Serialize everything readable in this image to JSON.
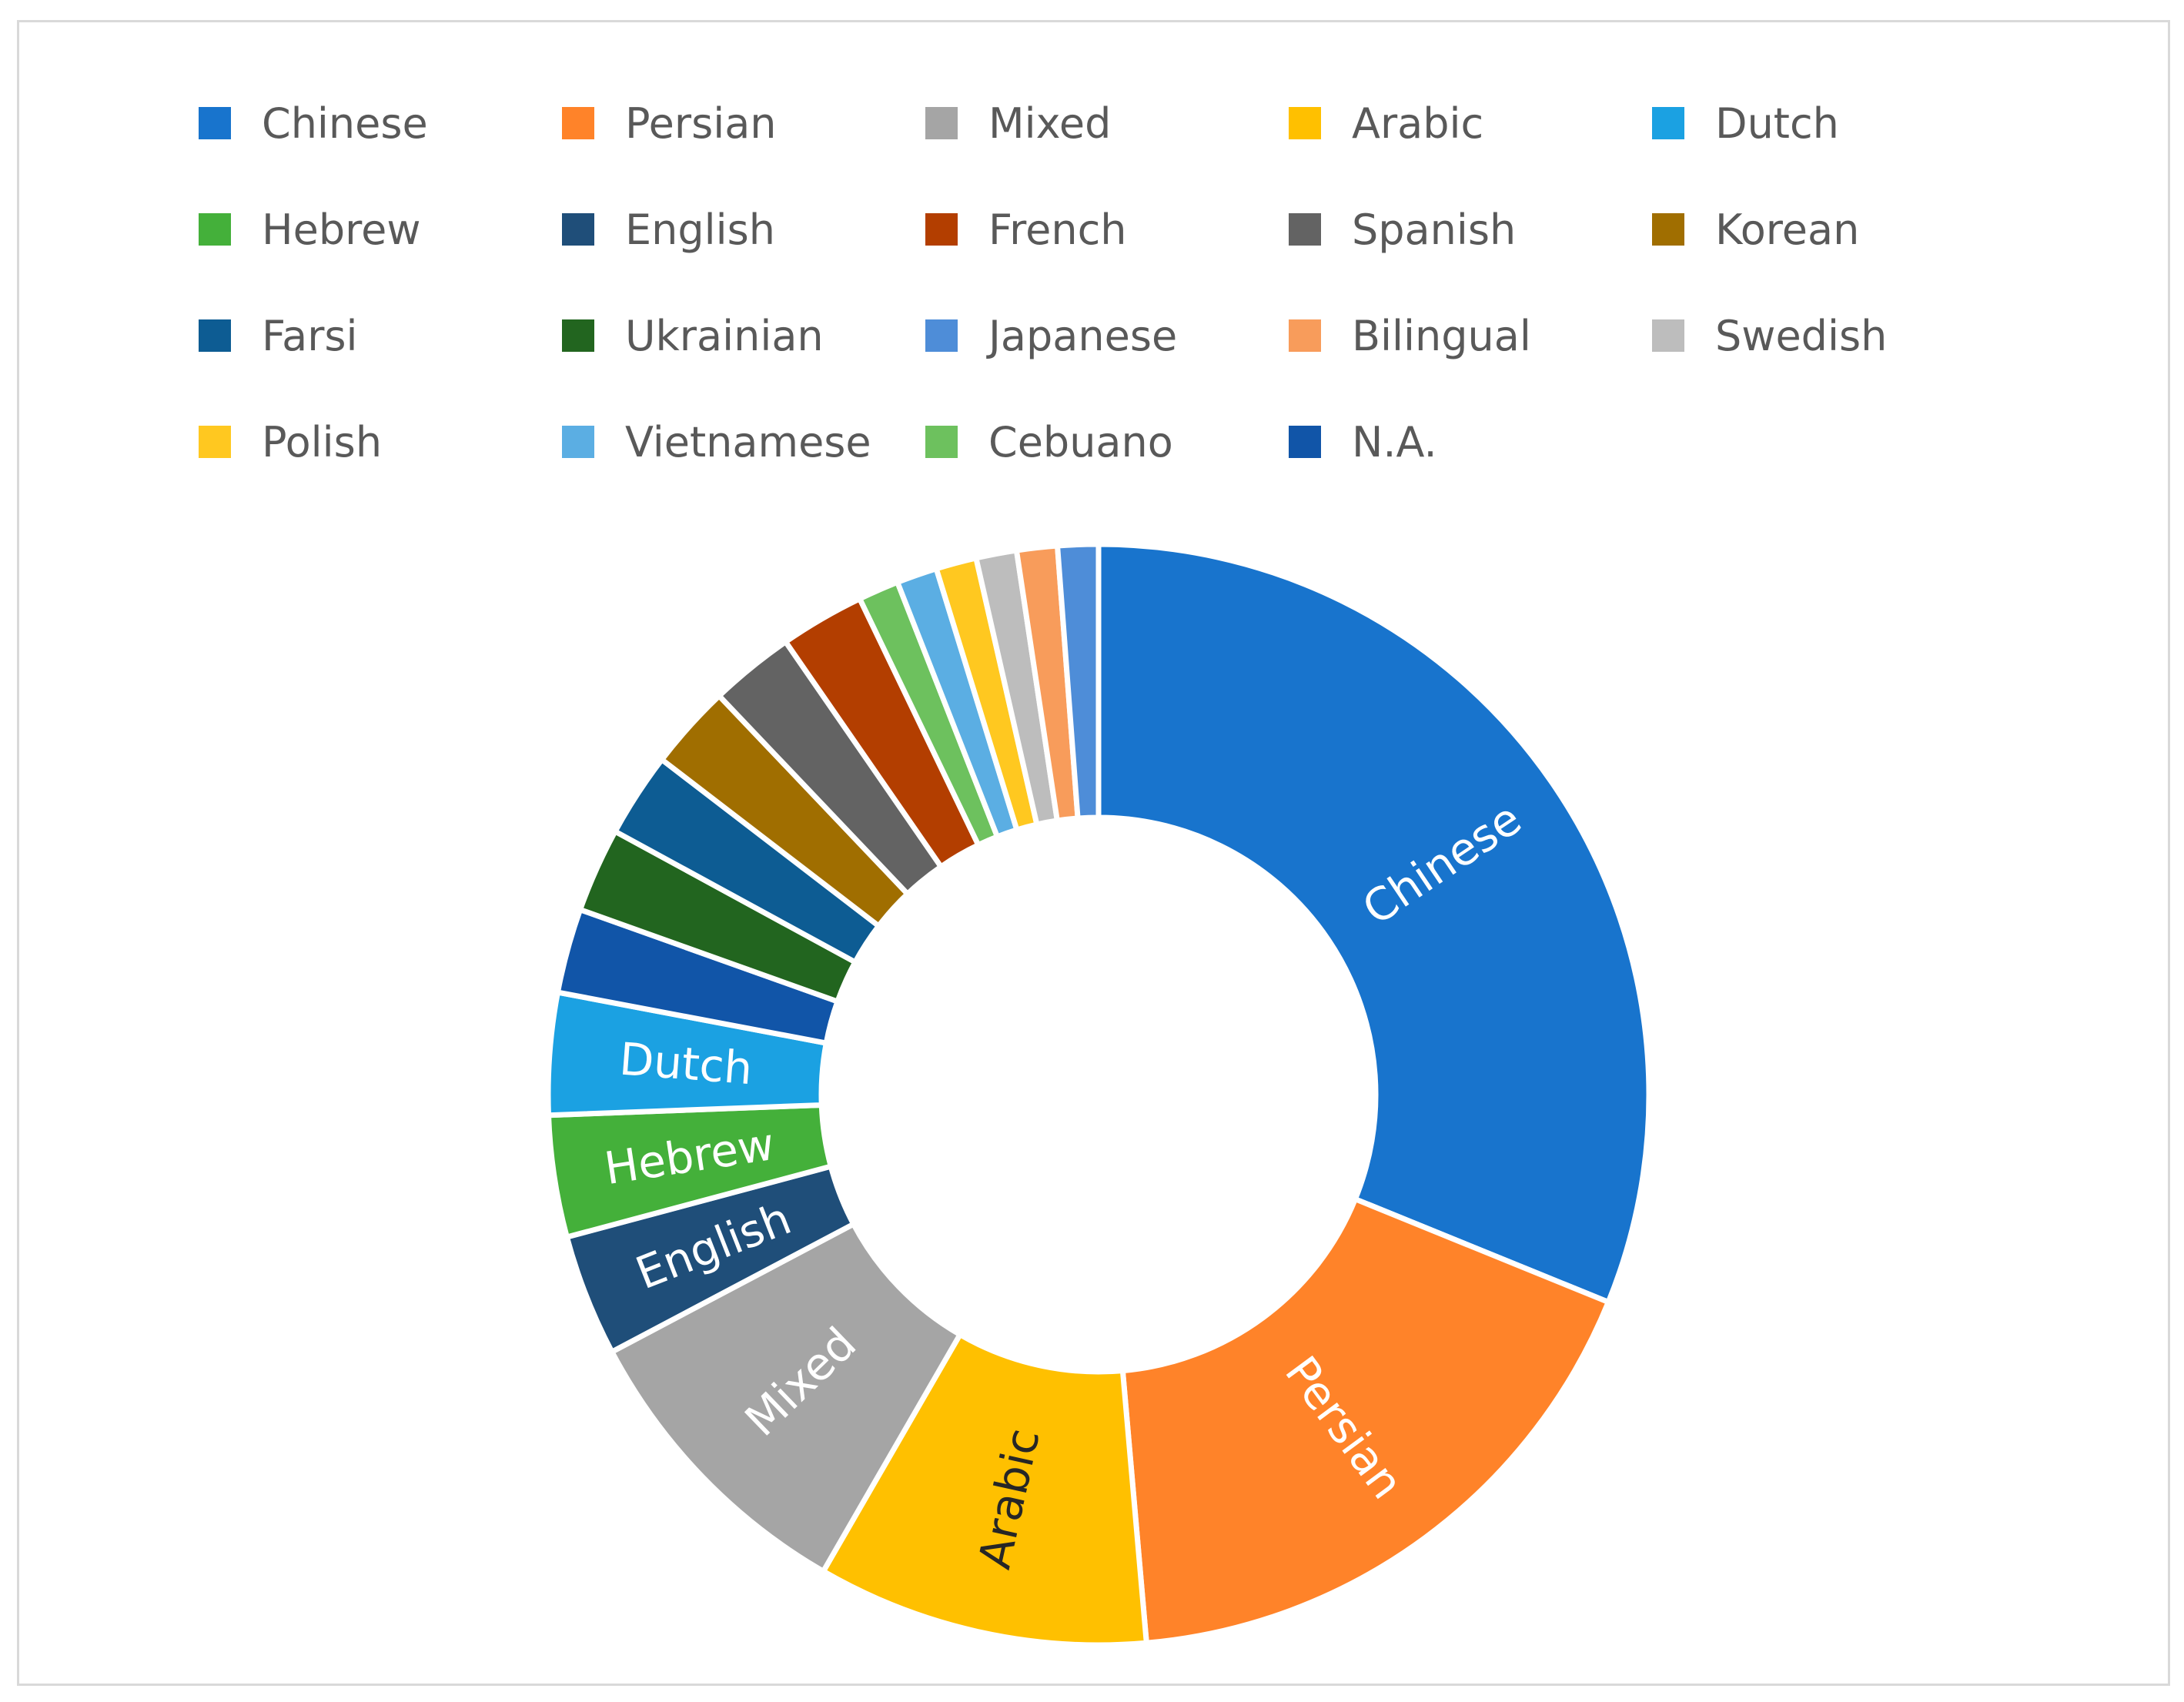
{
  "chart_data": {
    "type": "pie",
    "variant": "donut",
    "title": "",
    "legend_position": "top",
    "slices": [
      {
        "label": "Chinese",
        "value": 31.4,
        "color": "#1874CD",
        "data_label": "Chinese",
        "label_color": "#ffffff"
      },
      {
        "label": "Persian",
        "value": 17.6,
        "color": "#FF8329",
        "data_label": "Persian",
        "label_color": "#ffffff"
      },
      {
        "label": "Arabic",
        "value": 9.8,
        "color": "#FFC000",
        "data_label": "Arabic",
        "label_color": "#262626"
      },
      {
        "label": "Mixed",
        "value": 9.0,
        "color": "#A5A5A5",
        "data_label": "Mixed",
        "label_color": "#ffffff"
      },
      {
        "label": "English",
        "value": 3.6,
        "color": "#1F4E79",
        "data_label": "English",
        "label_color": "#ffffff"
      },
      {
        "label": "Hebrew",
        "value": 3.6,
        "color": "#44B03A",
        "data_label": "Hebrew",
        "label_color": "#ffffff"
      },
      {
        "label": "Dutch",
        "value": 3.6,
        "color": "#1BA1E2",
        "data_label": "Dutch",
        "label_color": "#ffffff"
      },
      {
        "label": "N.A.",
        "value": 2.5,
        "color": "#1155A8"
      },
      {
        "label": "Ukrainian",
        "value": 2.5,
        "color": "#22651F"
      },
      {
        "label": "Farsi",
        "value": 2.5,
        "color": "#0D5C93"
      },
      {
        "label": "Korean",
        "value": 2.5,
        "color": "#A06E00"
      },
      {
        "label": "Spanish",
        "value": 2.5,
        "color": "#636363"
      },
      {
        "label": "French",
        "value": 2.5,
        "color": "#B33E00"
      },
      {
        "label": "Cebuano",
        "value": 1.2,
        "color": "#6DC15E"
      },
      {
        "label": "Vietnamese",
        "value": 1.2,
        "color": "#5BAEE3"
      },
      {
        "label": "Polish",
        "value": 1.2,
        "color": "#FFC820"
      },
      {
        "label": "Swedish",
        "value": 1.2,
        "color": "#BDBDBD"
      },
      {
        "label": "Bilingual",
        "value": 1.2,
        "color": "#F89C5B"
      },
      {
        "label": "Japanese",
        "value": 1.2,
        "color": "#4E8DD8"
      }
    ],
    "legend": [
      "Chinese",
      "Persian",
      "Mixed",
      "Arabic",
      "Dutch",
      "Hebrew",
      "English",
      "French",
      "Spanish",
      "Korean",
      "Farsi",
      "Ukrainian",
      "Japanese",
      "Bilingual",
      "Swedish",
      "Polish",
      "Vietnamese",
      "Cebuano",
      "N.A."
    ]
  }
}
